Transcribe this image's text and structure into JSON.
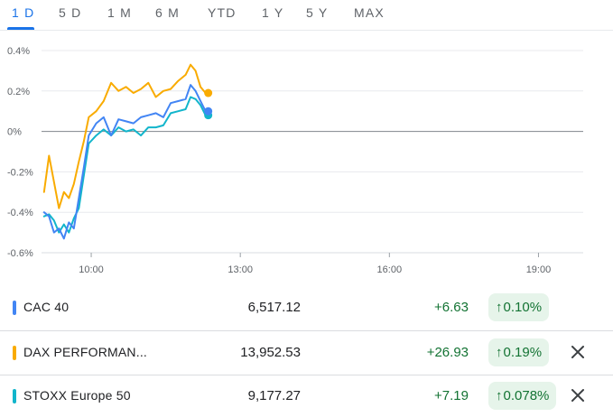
{
  "tabs": [
    {
      "label": "1 D",
      "active": true
    },
    {
      "label": "5 D",
      "active": false
    },
    {
      "label": "1 M",
      "active": false
    },
    {
      "label": "6 M",
      "active": false
    },
    {
      "label": "YTD",
      "active": false
    },
    {
      "label": "1 Y",
      "active": false
    },
    {
      "label": "5 Y",
      "active": false
    },
    {
      "label": "MAX",
      "active": false
    }
  ],
  "chart_data": {
    "type": "line",
    "title": "",
    "xlabel": "",
    "ylabel": "",
    "x_ticks": [
      "10:00",
      "13:00",
      "16:00",
      "19:00"
    ],
    "y_ticks": [
      "0.4%",
      "0.2%",
      "0%",
      "-0.2%",
      "-0.4%",
      "-0.6%"
    ],
    "y_tick_values": [
      0.4,
      0.2,
      0.0,
      -0.2,
      -0.4,
      -0.6
    ],
    "ylim": [
      -0.6,
      0.4
    ],
    "xlim_hours": [
      9.0,
      19.9
    ],
    "grid": "horizontal",
    "zero_line": true,
    "series": [
      {
        "name": "CAC 40",
        "color": "#4285f4",
        "x_hours": [
          9.05,
          9.15,
          9.25,
          9.35,
          9.45,
          9.55,
          9.65,
          9.75,
          9.85,
          9.95,
          10.1,
          10.25,
          10.4,
          10.55,
          10.7,
          10.85,
          11.0,
          11.15,
          11.3,
          11.45,
          11.6,
          11.75,
          11.9,
          12.0,
          12.1,
          12.2,
          12.3
        ],
        "values": [
          -0.4,
          -0.42,
          -0.5,
          -0.48,
          -0.53,
          -0.45,
          -0.48,
          -0.33,
          -0.18,
          -0.02,
          0.04,
          0.07,
          -0.02,
          0.06,
          0.05,
          0.04,
          0.07,
          0.08,
          0.09,
          0.07,
          0.14,
          0.15,
          0.16,
          0.23,
          0.2,
          0.15,
          0.1
        ]
      },
      {
        "name": "DAX PERFORMAN...",
        "color": "#f9ab00",
        "x_hours": [
          9.05,
          9.15,
          9.25,
          9.35,
          9.45,
          9.55,
          9.65,
          9.75,
          9.85,
          9.95,
          10.1,
          10.25,
          10.4,
          10.55,
          10.7,
          10.85,
          11.0,
          11.15,
          11.3,
          11.45,
          11.6,
          11.75,
          11.9,
          12.0,
          12.1,
          12.2,
          12.3
        ],
        "values": [
          -0.3,
          -0.12,
          -0.25,
          -0.38,
          -0.3,
          -0.33,
          -0.26,
          -0.15,
          -0.05,
          0.07,
          0.1,
          0.15,
          0.24,
          0.2,
          0.22,
          0.19,
          0.21,
          0.24,
          0.17,
          0.2,
          0.21,
          0.25,
          0.28,
          0.33,
          0.3,
          0.22,
          0.19
        ]
      },
      {
        "name": "STOXX Europe 50",
        "color": "#12b5cb",
        "x_hours": [
          9.05,
          9.15,
          9.25,
          9.35,
          9.45,
          9.55,
          9.65,
          9.75,
          9.85,
          9.95,
          10.1,
          10.25,
          10.4,
          10.55,
          10.7,
          10.85,
          11.0,
          11.15,
          11.3,
          11.45,
          11.6,
          11.75,
          11.9,
          12.0,
          12.1,
          12.2,
          12.3
        ],
        "values": [
          -0.42,
          -0.41,
          -0.44,
          -0.5,
          -0.46,
          -0.5,
          -0.43,
          -0.38,
          -0.22,
          -0.06,
          -0.02,
          0.01,
          -0.02,
          0.02,
          0.0,
          0.01,
          -0.02,
          0.02,
          0.02,
          0.03,
          0.09,
          0.1,
          0.11,
          0.17,
          0.16,
          0.13,
          0.08
        ]
      }
    ]
  },
  "rows": [
    {
      "name": "CAC 40",
      "color": "#4285f4",
      "price": "6,517.12",
      "change": "+6.63",
      "arrow": "↑",
      "pct": "0.10%",
      "removable": false
    },
    {
      "name": "DAX PERFORMAN...",
      "color": "#f9ab00",
      "price": "13,952.53",
      "change": "+26.93",
      "arrow": "↑",
      "pct": "0.19%",
      "removable": true
    },
    {
      "name": "STOXX Europe 50",
      "color": "#12b5cb",
      "price": "9,177.27",
      "change": "+7.19",
      "arrow": "↑",
      "pct": "0.078%",
      "removable": true
    }
  ]
}
